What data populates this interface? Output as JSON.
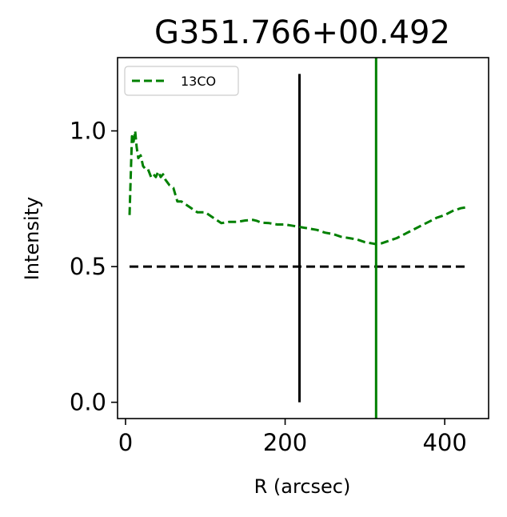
{
  "chart_data": {
    "type": "line",
    "title": "G351.766+00.492",
    "xlabel": "R (arcsec)",
    "ylabel": "Intensity",
    "xlim": [
      -10,
      455
    ],
    "ylim": [
      -0.06,
      1.27
    ],
    "xticks": [
      0,
      200,
      400
    ],
    "xtick_labels": [
      "0",
      "200",
      "400"
    ],
    "yticks": [
      0.0,
      0.5,
      1.0
    ],
    "ytick_labels": [
      "0.0",
      "0.5",
      "1.0"
    ],
    "grid": false,
    "legend_position": "upper-left",
    "series": [
      {
        "name": "13CO",
        "color": "#008000",
        "style": "dashed",
        "x": [
          5,
          8,
          10,
          12,
          14,
          16,
          19,
          22,
          25,
          28,
          32,
          35,
          38,
          41,
          44,
          47,
          50,
          55,
          60,
          65,
          70,
          80,
          90,
          100,
          110,
          120,
          130,
          140,
          150,
          160,
          165,
          170,
          180,
          190,
          200,
          210,
          220,
          230,
          240,
          250,
          260,
          270,
          280,
          290,
          300,
          310,
          315,
          320,
          330,
          340,
          350,
          360,
          370,
          380,
          390,
          400,
          410,
          420,
          430
        ],
        "y": [
          0.69,
          0.98,
          0.96,
          1.0,
          0.94,
          0.9,
          0.91,
          0.87,
          0.86,
          0.86,
          0.83,
          0.84,
          0.83,
          0.85,
          0.83,
          0.84,
          0.82,
          0.8,
          0.79,
          0.74,
          0.74,
          0.72,
          0.7,
          0.7,
          0.68,
          0.66,
          0.665,
          0.665,
          0.67,
          0.672,
          0.668,
          0.662,
          0.66,
          0.655,
          0.655,
          0.65,
          0.645,
          0.64,
          0.635,
          0.625,
          0.62,
          0.61,
          0.605,
          0.6,
          0.59,
          0.585,
          0.582,
          0.585,
          0.595,
          0.605,
          0.62,
          0.635,
          0.65,
          0.665,
          0.68,
          0.69,
          0.705,
          0.715,
          0.72
        ]
      }
    ],
    "hlines": [
      {
        "y": 0.5,
        "xmin": 5,
        "xmax": 430,
        "color": "#000000",
        "style": "dashed"
      }
    ],
    "vlines": [
      {
        "x": 218,
        "ymin": 0.0,
        "ymax": 1.21,
        "color": "#000000",
        "style": "solid"
      },
      {
        "x": 314,
        "ymin": -0.06,
        "ymax": 1.27,
        "color": "#008000",
        "style": "solid"
      }
    ]
  }
}
